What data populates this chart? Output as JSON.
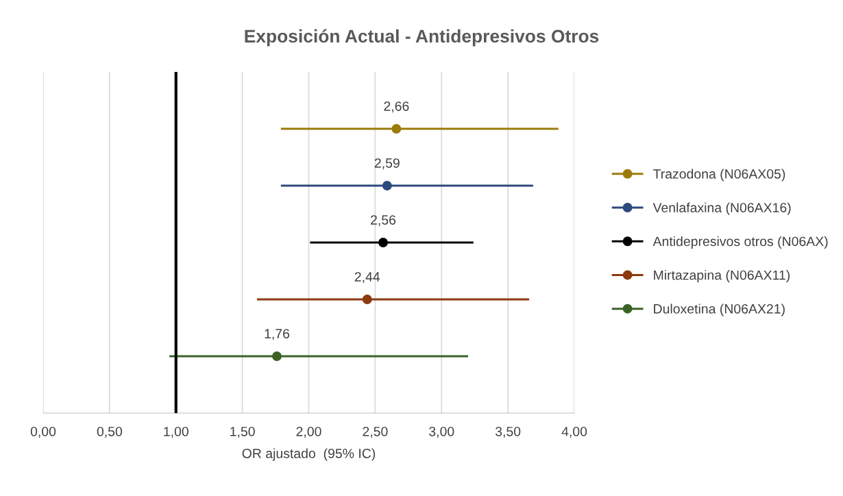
{
  "chart_data": {
    "type": "scatter",
    "orientation": "horizontal",
    "title": "Exposición Actual - Antidepresivos Otros",
    "xlabel": "OR ajustado  (95% IC)",
    "categories": [
      null,
      null,
      null,
      null,
      null
    ],
    "series": [
      {
        "name": "Trazodona (N06AX05)",
        "color": "#9c7b0c",
        "values": [
          2.66,
          null,
          null,
          null,
          null
        ],
        "errors": [
          [
            1.79,
            3.88
          ],
          null,
          null,
          null,
          null
        ],
        "value_labels": [
          "2,66",
          null,
          null,
          null,
          null
        ]
      },
      {
        "name": "Venlafaxina (N06AX16)",
        "color": "#2c4a7e",
        "values": [
          null,
          2.59,
          null,
          null,
          null
        ],
        "errors": [
          null,
          [
            1.79,
            3.69
          ],
          null,
          null,
          null
        ],
        "value_labels": [
          null,
          "2,59",
          null,
          null,
          null
        ]
      },
      {
        "name": "Antidepresivos otros (N06AX)",
        "color": "#000000",
        "values": [
          null,
          null,
          2.56,
          null,
          null
        ],
        "errors": [
          null,
          null,
          [
            2.01,
            3.24
          ],
          null,
          null
        ],
        "value_labels": [
          null,
          null,
          "2,56",
          null,
          null
        ]
      },
      {
        "name": "Mirtazapina (N06AX11)",
        "color": "#8c3a0e",
        "values": [
          null,
          null,
          null,
          2.44,
          null
        ],
        "errors": [
          null,
          null,
          null,
          [
            1.61,
            3.66
          ],
          null
        ],
        "value_labels": [
          null,
          null,
          null,
          "2,44",
          null
        ]
      },
      {
        "name": "Duloxetina (N06AX21)",
        "color": "#3b6326",
        "values": [
          null,
          null,
          null,
          null,
          1.76
        ],
        "errors": [
          null,
          null,
          null,
          null,
          [
            0.95,
            3.2
          ]
        ],
        "value_labels": [
          null,
          null,
          null,
          null,
          "1,76"
        ]
      }
    ],
    "xlim": [
      0,
      4
    ],
    "xticks": [
      {
        "value": 0,
        "label": "0,00"
      },
      {
        "value": 0.5,
        "label": "0,50"
      },
      {
        "value": 1,
        "label": "1,00"
      },
      {
        "value": 1.5,
        "label": "1,50"
      },
      {
        "value": 2,
        "label": "2,00"
      },
      {
        "value": 2.5,
        "label": "2,50"
      },
      {
        "value": 3,
        "label": "3,00"
      },
      {
        "value": 3.5,
        "label": "3,50"
      },
      {
        "value": 4,
        "label": "4,00"
      }
    ],
    "ref_lines": [
      {
        "axis": "x",
        "value": 1,
        "color": "#000000"
      }
    ],
    "grid": "x",
    "legend": "right",
    "marker": "circle",
    "line_style": "solid",
    "tick_labels": "x"
  }
}
